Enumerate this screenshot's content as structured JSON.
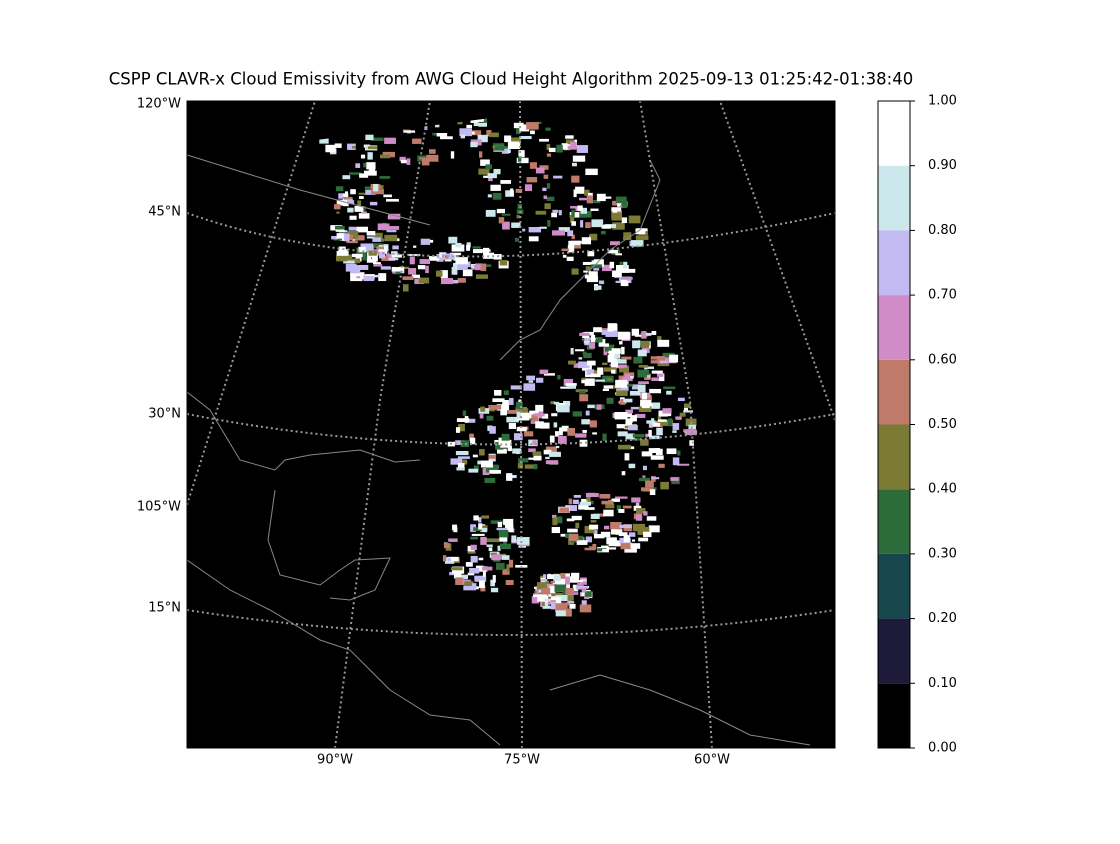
{
  "title": "CSPP CLAVR-x Cloud Emissivity from AWG Cloud Height Algorithm 2025-09-13 01:25:42-01:38:40",
  "map": {
    "left_labels": [
      "120°W",
      "45°N",
      "30°N",
      "105°W",
      "15°N"
    ],
    "bottom_labels": [
      "90°W",
      "75°W",
      "60°W"
    ]
  },
  "colorbar": {
    "ticks": [
      {
        "value": 0,
        "label": "0.00"
      },
      {
        "value": 0.1,
        "label": "0.10"
      },
      {
        "value": 0.2,
        "label": "0.20"
      },
      {
        "value": 0.3,
        "label": "0.30"
      },
      {
        "value": 0.4,
        "label": "0.40"
      },
      {
        "value": 0.5,
        "label": "0.50"
      },
      {
        "value": 0.6,
        "label": "0.60"
      },
      {
        "value": 0.7,
        "label": "0.70"
      },
      {
        "value": 0.8,
        "label": "0.80"
      },
      {
        "value": 0.9,
        "label": "0.90"
      },
      {
        "value": 1,
        "label": "1.00"
      }
    ],
    "colors": [
      "#000000",
      "#1e1a3a",
      "#17464c",
      "#2e6b3a",
      "#7b7b36",
      "#c07a6a",
      "#d08cc6",
      "#c2baf0",
      "#cce8ec",
      "#ffffff"
    ],
    "lim": [
      0,
      1
    ]
  }
}
